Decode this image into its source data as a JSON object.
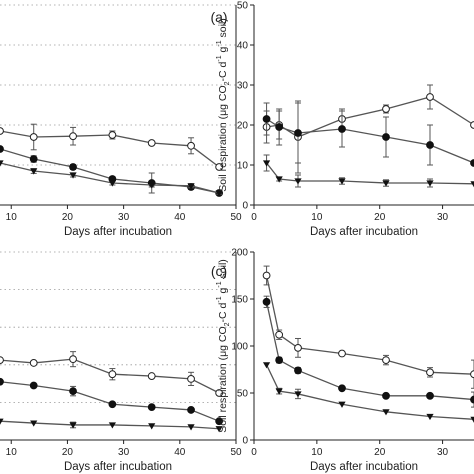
{
  "chart_data": [
    {
      "type": "line",
      "panel_label": "(a)",
      "xlabel": "Days after incubation",
      "ylabel": "",
      "xlim": [
        8,
        50
      ],
      "ylim": [
        0,
        50
      ],
      "x_ticks": [
        10,
        20,
        30,
        40,
        50
      ],
      "y_ticks": [],
      "grid": "horizontal",
      "series": [
        {
          "marker": "open-circle",
          "x": [
            8,
            14,
            21,
            28,
            35,
            42,
            47
          ],
          "y": [
            18.5,
            17.0,
            17.2,
            17.5,
            15.5,
            14.8,
            9.5
          ],
          "err": [
            0,
            3.2,
            2.2,
            1.0,
            0,
            2.0,
            0
          ]
        },
        {
          "marker": "filled-circle",
          "x": [
            8,
            14,
            21,
            28,
            35,
            42,
            47
          ],
          "y": [
            14.0,
            11.5,
            9.5,
            6.5,
            5.5,
            4.5,
            3.0
          ],
          "err": [
            0,
            0.8,
            0.6,
            0.6,
            2.5,
            0.6,
            0.4
          ]
        },
        {
          "marker": "filled-triangle",
          "x": [
            8,
            14,
            21,
            28,
            35,
            42,
            47
          ],
          "y": [
            10.5,
            8.5,
            7.5,
            5.5,
            5.0,
            4.8,
            3.0
          ],
          "err": [
            0,
            0.6,
            0.5,
            0.5,
            0.5,
            0.5,
            0.3
          ]
        }
      ]
    },
    {
      "type": "line",
      "panel_label": "",
      "xlabel": "Days after incubation",
      "ylabel_parts": [
        "Soil respiration (μg CO",
        "2",
        "-C d",
        "-1",
        " g",
        "-1",
        " soil)"
      ],
      "xlim": [
        0,
        35
      ],
      "ylim": [
        0,
        50
      ],
      "x_ticks": [
        0,
        10,
        20,
        30
      ],
      "y_ticks": [
        0,
        10,
        20,
        30,
        40,
        50
      ],
      "grid": "none",
      "series": [
        {
          "marker": "open-circle",
          "x": [
            2,
            4,
            7,
            14,
            21,
            28,
            35
          ],
          "y": [
            19.5,
            20.0,
            17.0,
            21.5,
            24.0,
            27.0,
            20.0
          ],
          "err": [
            4.0,
            3.5,
            9.0,
            2.5,
            1.0,
            3.0,
            0
          ]
        },
        {
          "marker": "filled-circle",
          "x": [
            2,
            4,
            7,
            14,
            21,
            28,
            35
          ],
          "y": [
            21.5,
            19.5,
            18.0,
            19.0,
            17.0,
            15.0,
            10.5
          ],
          "err": [
            4.0,
            4.5,
            7.5,
            4.5,
            5.0,
            5.0,
            0
          ]
        },
        {
          "marker": "filled-triangle",
          "x": [
            2,
            4,
            7,
            14,
            21,
            28,
            35
          ],
          "y": [
            10.5,
            6.5,
            6.0,
            6.0,
            5.5,
            5.5,
            5.3
          ],
          "err": [
            2.0,
            0.5,
            1.5,
            0.8,
            0.8,
            1.0,
            0
          ]
        }
      ]
    },
    {
      "type": "line",
      "panel_label": "(c)",
      "xlabel": "Days after incubation",
      "ylabel": "",
      "xlim": [
        8,
        50
      ],
      "ylim": [
        0,
        200
      ],
      "x_ticks": [
        10,
        20,
        30,
        40,
        50
      ],
      "y_ticks": [],
      "grid": "horizontal",
      "series": [
        {
          "marker": "open-circle",
          "x": [
            8,
            14,
            21,
            28,
            35,
            42,
            47
          ],
          "y": [
            85,
            82,
            86,
            70,
            68,
            65,
            50
          ],
          "err": [
            0,
            0,
            8,
            6,
            0,
            7,
            0
          ]
        },
        {
          "marker": "filled-circle",
          "x": [
            8,
            14,
            21,
            28,
            35,
            42,
            47
          ],
          "y": [
            62,
            58,
            52,
            38,
            35,
            32,
            20
          ],
          "err": [
            0,
            0,
            5,
            0,
            0,
            0,
            0
          ]
        },
        {
          "marker": "filled-triangle",
          "x": [
            8,
            14,
            21,
            28,
            35,
            42,
            47
          ],
          "y": [
            20,
            18,
            16,
            16,
            15,
            14,
            12
          ],
          "err": [
            0,
            0,
            3,
            0,
            0,
            0,
            0
          ]
        }
      ]
    },
    {
      "type": "line",
      "panel_label": "",
      "xlabel": "Days after incubation",
      "ylabel_parts": [
        "Soil respiration (μg CO",
        "2",
        "-C d",
        "-1",
        " g",
        "-1",
        " soil)"
      ],
      "xlim": [
        0,
        35
      ],
      "ylim": [
        0,
        200
      ],
      "x_ticks": [
        0,
        10,
        20,
        30
      ],
      "y_ticks": [
        0,
        50,
        100,
        150,
        200
      ],
      "grid": "none",
      "series": [
        {
          "marker": "open-circle",
          "x": [
            2,
            4,
            7,
            14,
            21,
            28,
            35
          ],
          "y": [
            175,
            112,
            98,
            92,
            85,
            72,
            70
          ],
          "err": [
            10,
            5,
            10,
            0,
            5,
            5,
            15
          ]
        },
        {
          "marker": "filled-circle",
          "x": [
            2,
            4,
            7,
            14,
            21,
            28,
            35
          ],
          "y": [
            147,
            85,
            74,
            55,
            47,
            47,
            43
          ],
          "err": [
            6,
            3,
            3,
            0,
            0,
            0,
            8
          ]
        },
        {
          "marker": "filled-triangle",
          "x": [
            2,
            4,
            7,
            14,
            21,
            28,
            35
          ],
          "y": [
            80,
            52,
            49,
            38,
            30,
            25,
            22
          ],
          "err": [
            0,
            3,
            5,
            0,
            0,
            0,
            0
          ]
        }
      ]
    }
  ]
}
